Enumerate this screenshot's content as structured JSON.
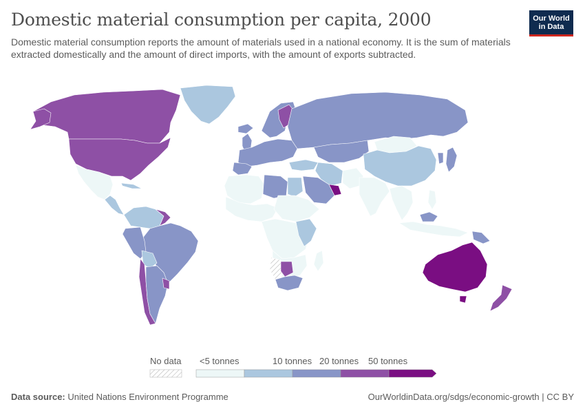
{
  "header": {
    "title": "Domestic material consumption per capita, 2000",
    "subtitle": "Domestic material consumption reports the amount of materials used in a national economy. It is the sum of materials extracted domestically and the amount of direct imports, with the amount of exports subtracted."
  },
  "logo": {
    "line1": "Our World",
    "line2": "in Data"
  },
  "legend": {
    "no_data_label": "No data",
    "bins": [
      {
        "label": "<5 tonnes",
        "color": "#edf7f7"
      },
      {
        "label": "10 tonnes",
        "color": "#abc7df"
      },
      {
        "label": "20 tonnes",
        "color": "#8895c7"
      },
      {
        "label": "50 tonnes",
        "color": "#8e50a5"
      },
      {
        "label": "",
        "color": "#7a0e82"
      }
    ]
  },
  "colors": {
    "very_low": "#edf7f7",
    "low": "#abc7df",
    "mid": "#8895c7",
    "high": "#8e50a5",
    "very_high": "#7a0e82",
    "no_data": "#e5e5e5",
    "border": "#cfcfcf"
  },
  "footer": {
    "source_label": "Data source:",
    "source_value": "United Nations Environment Programme",
    "url": "OurWorldinData.org/sdgs/economic-growth | CC BY"
  }
}
